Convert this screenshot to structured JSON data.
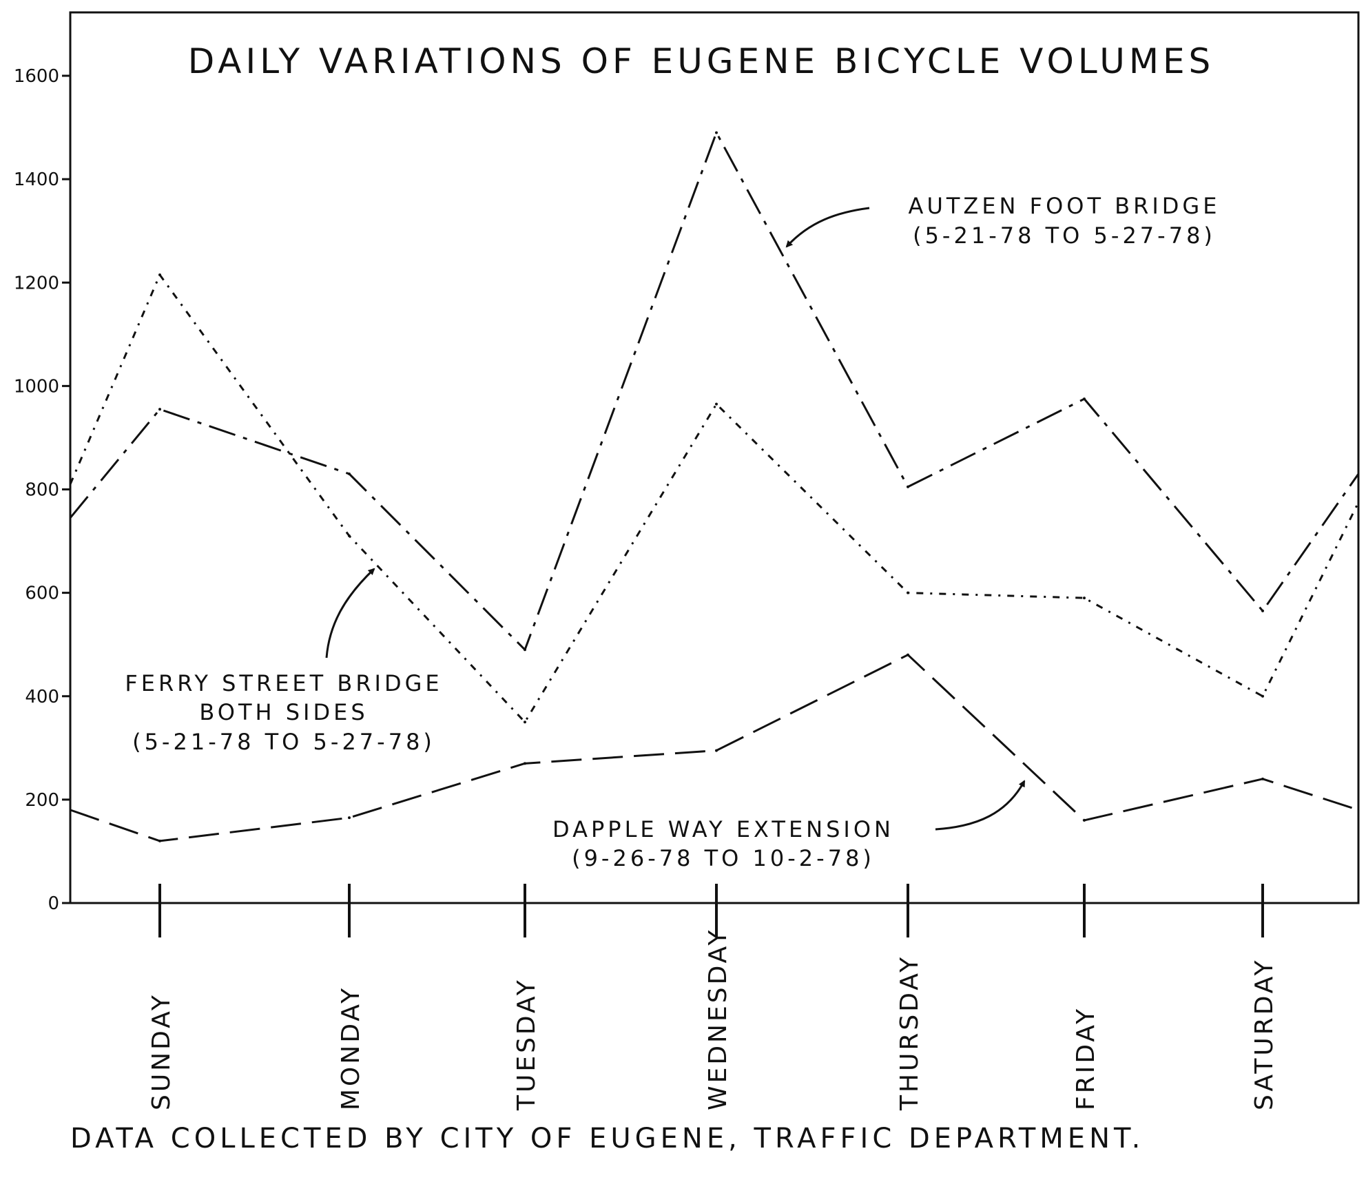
{
  "chart_data": {
    "type": "line",
    "title": "DAILY VARIATIONS OF EUGENE BICYCLE VOLUMES",
    "categories": [
      "SUNDAY",
      "MONDAY",
      "TUESDAY",
      "WEDNESDAY",
      "THURSDAY",
      "FRIDAY",
      "SATURDAY"
    ],
    "y_ticks": [
      "0",
      "200",
      "400",
      "600",
      "800",
      "1000",
      "1200",
      "1400",
      "1600"
    ],
    "ylim": [
      0,
      1600
    ],
    "grid": false,
    "series": [
      {
        "name": "AUTZEN FOOT BRIDGE (5-21-78 TO 5-27-78)",
        "values": [
          955,
          830,
          490,
          1490,
          805,
          975,
          565
        ],
        "edges": [
          745,
          830
        ],
        "dash": "40,12,6,12"
      },
      {
        "name": "FERRY STREET BRIDGE BOTH SIDES (5-21-78 TO 5-27-78)",
        "values": [
          1215,
          710,
          350,
          965,
          600,
          590,
          400
        ],
        "edges": [
          810,
          775
        ],
        "dash": "10,10,3,10"
      },
      {
        "name": "DAPPLE WAY EXTENSION (9-26-78 TO 10-2-78)",
        "values": [
          120,
          165,
          270,
          295,
          480,
          160,
          240
        ],
        "edges": [
          180,
          180
        ],
        "dash": "44,16"
      }
    ],
    "annotations": {
      "autzen": [
        "AUTZEN FOOT BRIDGE",
        "(5-21-78 TO 5-27-78)"
      ],
      "ferry": [
        "FERRY STREET BRIDGE",
        "BOTH SIDES",
        "(5-21-78 TO 5-27-78)"
      ],
      "dapple": [
        "DAPPLE WAY EXTENSION",
        "(9-26-78 TO 10-2-78)"
      ]
    }
  },
  "footer": {
    "credit": "DATA COLLECTED BY CITY OF EUGENE, TRAFFIC DEPARTMENT."
  }
}
